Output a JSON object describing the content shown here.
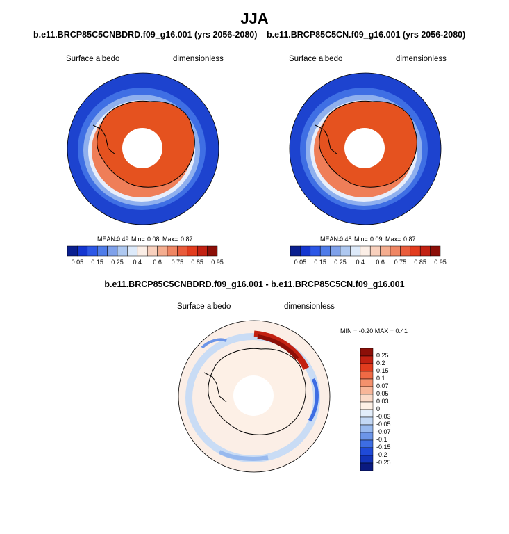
{
  "title": "JJA",
  "panels": [
    {
      "title": "b.e11.BRCP85C5CNBDRD.f09_g16.001 (yrs 2056-2080)",
      "variable": "Surface albedo",
      "units": "dimensionless",
      "stats": {
        "mean_label": "MEAN=",
        "mean": "0.49",
        "min_label": "Min=",
        "min": "0.08",
        "max_label": "Max=",
        "max": "0.87"
      }
    },
    {
      "title": "b.e11.BRCP85C5CN.f09_g16.001 (yrs 2056-2080)",
      "variable": "Surface albedo",
      "units": "dimensionless",
      "stats": {
        "mean_label": "MEAN=",
        "mean": "0.48",
        "min_label": "Min=",
        "min": "0.09",
        "max_label": "Max=",
        "max": "0.87"
      }
    }
  ],
  "colorbar_horizontal": {
    "colors": [
      "#0a1f8f",
      "#1436d0",
      "#2c57e6",
      "#4f7ce9",
      "#7fa1ea",
      "#aec8f0",
      "#ddeafa",
      "#fbeee6",
      "#f8d0bd",
      "#f4ad8f",
      "#ef8663",
      "#e95c3b",
      "#e23c1e",
      "#c22112",
      "#8c0f08"
    ],
    "labels": [
      "0.05",
      "0.15",
      "0.25",
      "0.4",
      "0.6",
      "0.75",
      "0.85",
      "0.95"
    ]
  },
  "difference": {
    "title": "b.e11.BRCP85C5CNBDRD.f09_g16.001 - b.e11.BRCP85C5CN.f09_g16.001",
    "variable": "Surface albedo",
    "units": "dimensionless",
    "minmax": "MIN = -0.20 MAX = 0.41",
    "colorbar": {
      "colors": [
        "#8c0f08",
        "#c22112",
        "#e23c1e",
        "#ef6a45",
        "#f4916d",
        "#f8b699",
        "#fbdac8",
        "#fdf0e6",
        "#e3eefb",
        "#c3d8f5",
        "#98b9ee",
        "#6c95e8",
        "#3d6de3",
        "#1f4ad8",
        "#1233b8",
        "#0a1a80"
      ],
      "labels": [
        "0.25",
        "0.2",
        "0.15",
        "0.1",
        "0.07",
        "0.05",
        "0.03",
        "0",
        "-0.03",
        "-0.05",
        "-0.07",
        "-0.1",
        "-0.15",
        "-0.2",
        "-0.25"
      ]
    }
  }
}
